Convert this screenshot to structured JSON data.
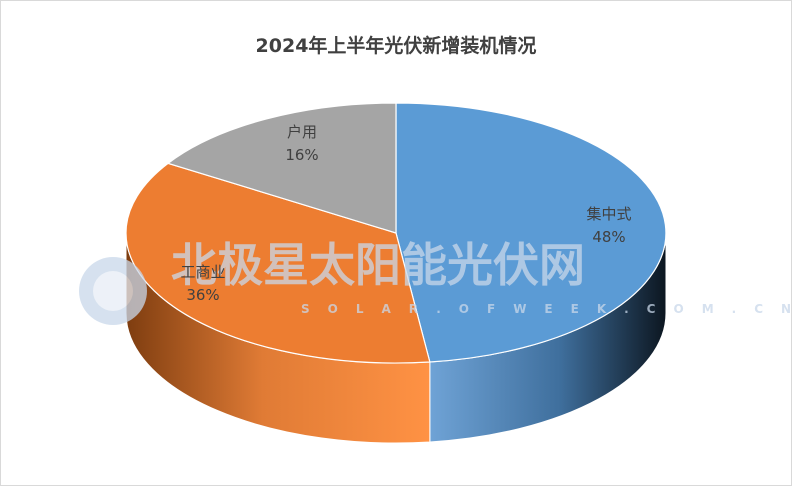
{
  "chart_data": {
    "type": "pie",
    "title": "2024年上半年光伏新增装机情况",
    "three_d": true,
    "categories": [
      "集中式",
      "工商业",
      "户用"
    ],
    "values": [
      48,
      36,
      16
    ],
    "labels": [
      "48%",
      "36%",
      "16%"
    ],
    "colors": [
      "#5b9bd5",
      "#ed7d31",
      "#a5a5a5"
    ],
    "legend": "none"
  },
  "watermark": {
    "text": "北极星太阳能光伏网",
    "sub": "SOLAR.OFWEEK.COM.CN",
    "color": "#c9d8ea"
  }
}
